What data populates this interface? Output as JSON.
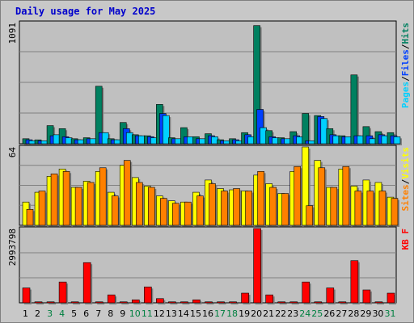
{
  "title": "Daily usage for May 2025",
  "colors": {
    "background": "#c8c8c8",
    "panel": "#c0c0c0",
    "hits": "#008060",
    "files": "#0040ff",
    "pages": "#00d0ff",
    "visits": "#ffff00",
    "sites": "#ff8000",
    "kbytes": "#ff0000",
    "weekday_label": "#000000",
    "weekend_label": "#008040"
  },
  "chart_data": [
    {
      "type": "bar",
      "max_label": "1091",
      "ylim": [
        0,
        1091
      ],
      "legend": [
        "Pages",
        "Files",
        "Hits"
      ],
      "legend_separator": "/",
      "categories": [
        "1",
        "2",
        "3",
        "4",
        "5",
        "6",
        "7",
        "8",
        "9",
        "10",
        "11",
        "12",
        "13",
        "14",
        "15",
        "16",
        "17",
        "18",
        "19",
        "20",
        "21",
        "22",
        "23",
        "24",
        "25",
        "26",
        "27",
        "28",
        "29",
        "30",
        "31"
      ],
      "series": [
        {
          "name": "Hits",
          "values": [
            45,
            35,
            163,
            136,
            45,
            54,
            518,
            45,
            191,
            81,
            72,
            354,
            54,
            145,
            63,
            90,
            36,
            45,
            100,
            1064,
            118,
            54,
            109,
            272,
            254,
            136,
            72,
            620,
            154,
            109,
            100
          ]
        },
        {
          "name": "Files",
          "values": [
            36,
            27,
            72,
            63,
            36,
            45,
            100,
            36,
            136,
            72,
            63,
            272,
            45,
            63,
            45,
            72,
            27,
            36,
            81,
            309,
            63,
            45,
            72,
            27,
            245,
            81,
            63,
            72,
            72,
            81,
            72
          ]
        },
        {
          "name": "Pages",
          "values": [
            27,
            27,
            81,
            54,
            36,
            45,
            100,
            36,
            100,
            72,
            54,
            254,
            45,
            63,
            45,
            63,
            27,
            27,
            63,
            145,
            54,
            45,
            63,
            27,
            227,
            72,
            63,
            72,
            45,
            72,
            63
          ]
        }
      ]
    },
    {
      "type": "bar",
      "max_label": "64",
      "ylim": [
        0,
        64
      ],
      "legend": [
        "Sites",
        "Visits"
      ],
      "legend_separator": "/",
      "categories": [
        "1",
        "2",
        "3",
        "4",
        "5",
        "6",
        "7",
        "8",
        "9",
        "10",
        "11",
        "12",
        "13",
        "14",
        "15",
        "16",
        "17",
        "18",
        "19",
        "20",
        "21",
        "22",
        "23",
        "24",
        "25",
        "26",
        "27",
        "28",
        "29",
        "30",
        "31"
      ],
      "series": [
        {
          "name": "Visits",
          "values": [
            19,
            27,
            40,
            46,
            31,
            36,
            44,
            27,
            49,
            39,
            32,
            24,
            20,
            19,
            27,
            37,
            30,
            29,
            28,
            41,
            34,
            26,
            44,
            64,
            53,
            31,
            46,
            32,
            37,
            35,
            23
          ]
        },
        {
          "name": "Sites",
          "values": [
            13,
            28,
            42,
            44,
            31,
            35,
            47,
            24,
            53,
            35,
            31,
            22,
            18,
            19,
            24,
            34,
            28,
            30,
            28,
            44,
            31,
            26,
            48,
            16,
            47,
            31,
            48,
            28,
            28,
            28,
            22
          ]
        }
      ]
    },
    {
      "type": "bar",
      "max_label": "2993798",
      "ylim": [
        0,
        2993798
      ],
      "legend": [
        "KB",
        "F"
      ],
      "legend_separator": " ",
      "categories": [
        "1",
        "2",
        "3",
        "4",
        "5",
        "6",
        "7",
        "8",
        "9",
        "10",
        "11",
        "12",
        "13",
        "14",
        "15",
        "16",
        "17",
        "18",
        "19",
        "20",
        "21",
        "22",
        "23",
        "24",
        "25",
        "26",
        "27",
        "28",
        "29",
        "30",
        "31"
      ],
      "series": [
        {
          "name": "KB F",
          "values": [
            600000,
            40000,
            40000,
            840000,
            40000,
            1620000,
            40000,
            320000,
            40000,
            120000,
            640000,
            170000,
            40000,
            40000,
            120000,
            40000,
            40000,
            40000,
            390000,
            2993798,
            320000,
            40000,
            40000,
            840000,
            40000,
            600000,
            40000,
            1700000,
            520000,
            40000,
            390000
          ]
        }
      ]
    }
  ],
  "days": [
    {
      "label": "1",
      "weekend": false
    },
    {
      "label": "2",
      "weekend": false
    },
    {
      "label": "3",
      "weekend": true
    },
    {
      "label": "4",
      "weekend": true
    },
    {
      "label": "5",
      "weekend": false
    },
    {
      "label": "6",
      "weekend": false
    },
    {
      "label": "7",
      "weekend": false
    },
    {
      "label": "8",
      "weekend": false
    },
    {
      "label": "9",
      "weekend": false
    },
    {
      "label": "10",
      "weekend": true
    },
    {
      "label": "11",
      "weekend": true
    },
    {
      "label": "12",
      "weekend": false
    },
    {
      "label": "13",
      "weekend": false
    },
    {
      "label": "14",
      "weekend": false
    },
    {
      "label": "15",
      "weekend": false
    },
    {
      "label": "16",
      "weekend": false
    },
    {
      "label": "17",
      "weekend": true
    },
    {
      "label": "18",
      "weekend": true
    },
    {
      "label": "19",
      "weekend": false
    },
    {
      "label": "20",
      "weekend": false
    },
    {
      "label": "21",
      "weekend": false
    },
    {
      "label": "22",
      "weekend": false
    },
    {
      "label": "23",
      "weekend": false
    },
    {
      "label": "24",
      "weekend": true
    },
    {
      "label": "25",
      "weekend": true
    },
    {
      "label": "26",
      "weekend": false
    },
    {
      "label": "27",
      "weekend": false
    },
    {
      "label": "28",
      "weekend": false
    },
    {
      "label": "29",
      "weekend": false
    },
    {
      "label": "30",
      "weekend": false
    },
    {
      "label": "31",
      "weekend": true
    }
  ]
}
